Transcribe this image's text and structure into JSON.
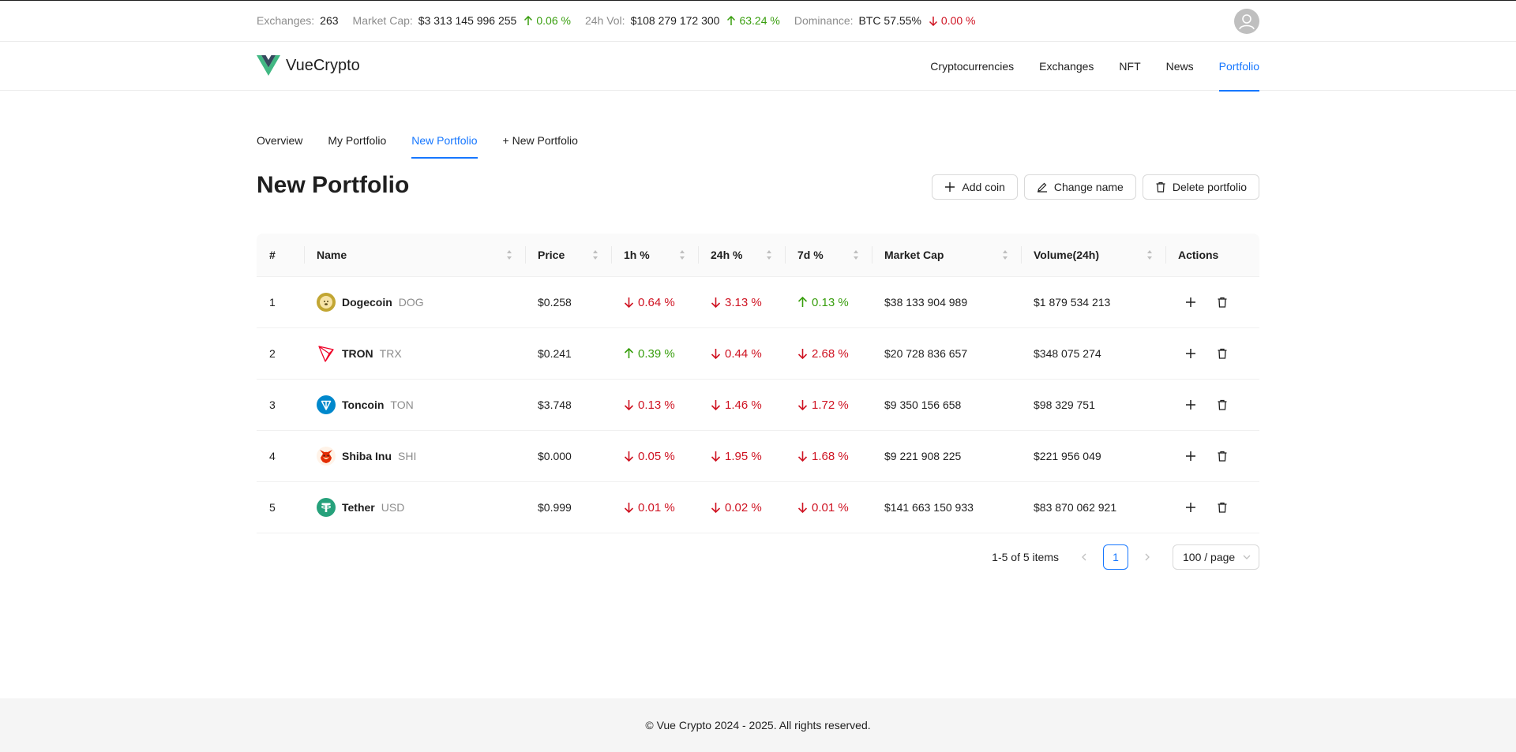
{
  "stats": {
    "exchanges_label": "Exchanges:",
    "exchanges_value": "263",
    "market_cap_label": "Market Cap:",
    "market_cap_value": "$3 313 145 996 255",
    "market_cap_change": "0.06 %",
    "vol_label": "24h Vol:",
    "vol_value": "$108 279 172 300",
    "vol_change": "63.24 %",
    "dominance_label": "Dominance:",
    "dominance_value": "BTC 57.55%",
    "dominance_change": "0.00 %"
  },
  "brand": {
    "name": "VueCrypto"
  },
  "nav": {
    "items": [
      "Cryptocurrencies",
      "Exchanges",
      "NFT",
      "News",
      "Portfolio"
    ],
    "active": "Portfolio"
  },
  "tabs": {
    "items": [
      "Overview",
      "My Portfolio",
      "New Portfolio",
      "+ New Portfolio"
    ],
    "active": "New Portfolio"
  },
  "page": {
    "title": "New Portfolio",
    "add_coin": "Add coin",
    "change_name": "Change name",
    "delete_portfolio": "Delete portfolio"
  },
  "table": {
    "columns": [
      "#",
      "Name",
      "Price",
      "1h %",
      "24h %",
      "7d %",
      "Market Cap",
      "Volume(24h)",
      "Actions"
    ],
    "rows": [
      {
        "rank": "1",
        "name": "Dogecoin",
        "symbol": "DOG",
        "price": "$0.258",
        "h1": "0.64 %",
        "h1_dir": "down",
        "h24": "3.13 %",
        "h24_dir": "down",
        "d7": "0.13 %",
        "d7_dir": "up",
        "market_cap": "$38 133 904 989",
        "volume": "$1 879 534 213",
        "icon": "dogecoin-icon",
        "icon_color": "#c2a633"
      },
      {
        "rank": "2",
        "name": "TRON",
        "symbol": "TRX",
        "price": "$0.241",
        "h1": "0.39 %",
        "h1_dir": "up",
        "h24": "0.44 %",
        "h24_dir": "down",
        "d7": "2.68 %",
        "d7_dir": "down",
        "market_cap": "$20 728 836 657",
        "volume": "$348 075 274",
        "icon": "tron-icon",
        "icon_color": "#ef0027"
      },
      {
        "rank": "3",
        "name": "Toncoin",
        "symbol": "TON",
        "price": "$3.748",
        "h1": "0.13 %",
        "h1_dir": "down",
        "h24": "1.46 %",
        "h24_dir": "down",
        "d7": "1.72 %",
        "d7_dir": "down",
        "market_cap": "$9 350 156 658",
        "volume": "$98 329 751",
        "icon": "toncoin-icon",
        "icon_color": "#0088cc"
      },
      {
        "rank": "4",
        "name": "Shiba Inu",
        "symbol": "SHI",
        "price": "$0.000",
        "h1": "0.05 %",
        "h1_dir": "down",
        "h24": "1.95 %",
        "h24_dir": "down",
        "d7": "1.68 %",
        "d7_dir": "down",
        "market_cap": "$9 221 908 225",
        "volume": "$221 956 049",
        "icon": "shiba-inu-icon",
        "icon_color": "#e42d04"
      },
      {
        "rank": "5",
        "name": "Tether",
        "symbol": "USD",
        "price": "$0.999",
        "h1": "0.01 %",
        "h1_dir": "down",
        "h24": "0.02 %",
        "h24_dir": "down",
        "d7": "0.01 %",
        "d7_dir": "down",
        "market_cap": "$141 663 150 933",
        "volume": "$83 870 062 921",
        "icon": "tether-icon",
        "icon_color": "#26a17b"
      }
    ]
  },
  "pagination": {
    "total": "1-5 of 5 items",
    "current": "1",
    "page_size": "100 / page"
  },
  "footer": {
    "text": "© Vue Crypto 2024 - 2025. All rights reserved."
  },
  "colors": {
    "accent": "#1677ff",
    "up": "#389e0d",
    "down": "#cf1322"
  }
}
